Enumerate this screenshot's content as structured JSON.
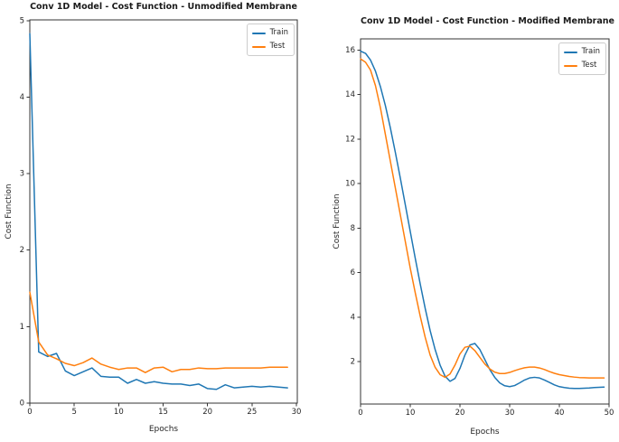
{
  "figure": {
    "background": "#ffffff",
    "axis_color": "#333333",
    "text_color": "#262626"
  },
  "chart_data": [
    {
      "type": "line",
      "title": "Conv 1D Model - Cost Function - Unmodified Membrane",
      "xlabel": "Epochs",
      "ylabel": "Cost Function",
      "xlim": [
        0,
        30.1
      ],
      "ylim": [
        0,
        5.01
      ],
      "xticks": [
        0,
        5,
        10,
        15,
        20,
        25,
        30
      ],
      "yticks": [
        0,
        1,
        2,
        3,
        4,
        5
      ],
      "grid": false,
      "legend_position": "upper right",
      "x": [
        0,
        1,
        2,
        3,
        4,
        5,
        6,
        7,
        8,
        9,
        10,
        11,
        12,
        13,
        14,
        15,
        16,
        17,
        18,
        19,
        20,
        21,
        22,
        23,
        24,
        25,
        26,
        27,
        28,
        29
      ],
      "series": [
        {
          "name": "Train",
          "color": "#1f77b4",
          "values": [
            4.83,
            0.67,
            0.61,
            0.65,
            0.42,
            0.36,
            0.41,
            0.46,
            0.35,
            0.34,
            0.34,
            0.26,
            0.31,
            0.26,
            0.28,
            0.26,
            0.25,
            0.25,
            0.23,
            0.25,
            0.19,
            0.18,
            0.24,
            0.2,
            0.21,
            0.22,
            0.21,
            0.22,
            0.21,
            0.2
          ]
        },
        {
          "name": "Test",
          "color": "#ff7f0e",
          "values": [
            1.45,
            0.8,
            0.63,
            0.58,
            0.52,
            0.49,
            0.53,
            0.59,
            0.51,
            0.47,
            0.44,
            0.46,
            0.46,
            0.4,
            0.46,
            0.47,
            0.41,
            0.44,
            0.44,
            0.46,
            0.45,
            0.45,
            0.46,
            0.46,
            0.46,
            0.46,
            0.46,
            0.47,
            0.47,
            0.47
          ]
        }
      ]
    },
    {
      "type": "line",
      "title": "Conv 1D Model - Cost Function - Modified Membrane",
      "xlabel": "Epochs",
      "ylabel": "Cost Function",
      "xlim": [
        0,
        50
      ],
      "ylim": [
        0.1,
        16.5
      ],
      "xticks": [
        0,
        10,
        20,
        30,
        40,
        50
      ],
      "yticks": [
        2,
        4,
        6,
        8,
        10,
        12,
        14,
        16
      ],
      "grid": false,
      "legend_position": "upper right",
      "x": [
        0,
        1,
        2,
        3,
        4,
        5,
        6,
        7,
        8,
        9,
        10,
        11,
        12,
        13,
        14,
        15,
        16,
        17,
        18,
        19,
        20,
        21,
        22,
        23,
        24,
        25,
        26,
        27,
        28,
        29,
        30,
        31,
        32,
        33,
        34,
        35,
        36,
        37,
        38,
        39,
        40,
        41,
        42,
        43,
        44,
        45,
        46,
        47,
        48,
        49
      ],
      "series": [
        {
          "name": "Train",
          "color": "#1f77b4",
          "values": [
            15.95,
            15.85,
            15.55,
            15.05,
            14.35,
            13.5,
            12.5,
            11.4,
            10.25,
            9.05,
            7.85,
            6.65,
            5.5,
            4.4,
            3.4,
            2.55,
            1.85,
            1.35,
            1.12,
            1.25,
            1.7,
            2.3,
            2.75,
            2.82,
            2.55,
            2.1,
            1.65,
            1.3,
            1.05,
            0.92,
            0.88,
            0.93,
            1.05,
            1.18,
            1.27,
            1.3,
            1.27,
            1.18,
            1.07,
            0.96,
            0.88,
            0.84,
            0.81,
            0.8,
            0.8,
            0.81,
            0.82,
            0.84,
            0.85,
            0.86
          ]
        },
        {
          "name": "Test",
          "color": "#ff7f0e",
          "values": [
            15.6,
            15.45,
            15.1,
            14.4,
            13.4,
            12.2,
            11.0,
            9.8,
            8.6,
            7.4,
            6.2,
            5.1,
            4.05,
            3.1,
            2.3,
            1.75,
            1.42,
            1.3,
            1.45,
            1.85,
            2.35,
            2.65,
            2.7,
            2.5,
            2.2,
            1.9,
            1.68,
            1.53,
            1.47,
            1.47,
            1.52,
            1.6,
            1.67,
            1.73,
            1.76,
            1.76,
            1.72,
            1.65,
            1.56,
            1.48,
            1.42,
            1.38,
            1.34,
            1.31,
            1.29,
            1.28,
            1.27,
            1.27,
            1.27,
            1.27
          ]
        }
      ]
    }
  ]
}
